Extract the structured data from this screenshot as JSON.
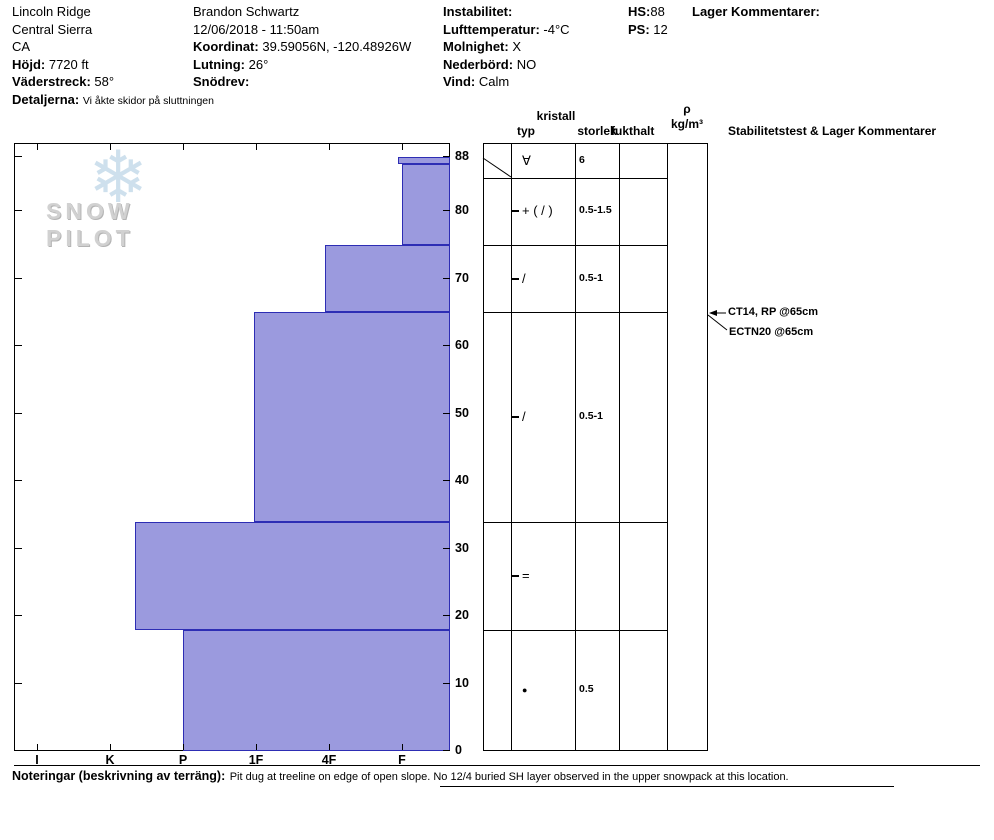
{
  "header": {
    "site": "Lincoln Ridge",
    "region": "Central Sierra",
    "state": "CA",
    "elevation": {
      "label": "Höjd:",
      "value": "7720 ft"
    },
    "aspect": {
      "label": "Väderstreck:",
      "value": "58°"
    },
    "details": {
      "label": "Detaljerna:",
      "value": "Vi åkte skidor på sluttningen"
    },
    "observer": "Brandon Schwartz",
    "datetime": "12/06/2018 - 11:50am",
    "coordinates": {
      "label": "Koordinat:",
      "value": "39.59056N, -120.48926W"
    },
    "slope_angle": {
      "label": "Lutning:",
      "value": "26°"
    },
    "wind_loading": {
      "label": "Snödrev:",
      "value": ""
    },
    "instability": {
      "label": "Instabilitet:",
      "value": ""
    },
    "air_temp": {
      "label": "Lufttemperatur:",
      "value": "-4°C"
    },
    "sky": {
      "label": "Molnighet:",
      "value": "X"
    },
    "precip": {
      "label": "Nederbörd:",
      "value": "NO"
    },
    "wind": {
      "label": "Vind:",
      "value": "Calm"
    },
    "hs": {
      "label": "HS:",
      "value": "88"
    },
    "ps": {
      "label": "PS:",
      "value": "12"
    },
    "layer_comments_label": "Lager Kommentarer:"
  },
  "watermark": {
    "snowflake": "❄",
    "text": "SNOW PILOT"
  },
  "profile_table": {
    "kristall": "kristall",
    "typ": "typ",
    "storlek": "storlek",
    "fukthalt": "fukthalt",
    "density_symbol": "ρ",
    "density_units": "kg/m³",
    "stability_header": "Stabilitetstest & Lager Kommentarer"
  },
  "chart_data": {
    "type": "bar",
    "description": "Snow pit hand-hardness profile, depth (cm) vs hardness, bars extend left from soft (F) toward hard (I)",
    "x_categories": [
      "I",
      "K",
      "P",
      "1F",
      "4F",
      "F"
    ],
    "y_ticks": [
      0,
      10,
      20,
      30,
      40,
      50,
      60,
      70,
      80,
      88
    ],
    "total_snow_height_cm": 88,
    "bar_fill": "#9b9ade",
    "bar_border": "#2d2db4",
    "layers": [
      {
        "top_cm": 88,
        "bottom_cm": 87,
        "hardness": "F",
        "hardness_idx": 4.95,
        "grain_type": "∀",
        "grain_size_mm": "6",
        "tick": false
      },
      {
        "top_cm": 87,
        "bottom_cm": 75,
        "hardness": "F",
        "hardness_idx": 5.0,
        "grain_type": "+ ( / )",
        "grain_size_mm": "0.5-1.5",
        "tick": true
      },
      {
        "top_cm": 75,
        "bottom_cm": 65,
        "hardness": "4F",
        "hardness_idx": 3.95,
        "grain_type": "/",
        "grain_size_mm": "0.5-1",
        "tick": true
      },
      {
        "top_cm": 65,
        "bottom_cm": 34,
        "hardness": "1F",
        "hardness_idx": 2.97,
        "grain_type": "/",
        "grain_size_mm": "0.5-1",
        "tick": true
      },
      {
        "top_cm": 34,
        "bottom_cm": 18,
        "hardness": "K-P",
        "hardness_idx": 1.34,
        "grain_type": "=",
        "grain_size_mm": "",
        "tick": true
      },
      {
        "top_cm": 18,
        "bottom_cm": 0,
        "hardness": "P",
        "hardness_idx": 2.0,
        "grain_type": "●",
        "grain_size_mm": "0.5",
        "tick": false
      }
    ]
  },
  "stability_tests": [
    {
      "label": "CT14, RP @65cm",
      "depth_cm": 65
    },
    {
      "label": "ECTN20 @65cm",
      "depth_cm": 65
    }
  ],
  "footer": {
    "label": "Noteringar (beskrivning av terräng):",
    "note": "Pit dug at treeline on edge of open slope. No 12/4 buried SH layer observed in the upper snowpack at this location."
  }
}
